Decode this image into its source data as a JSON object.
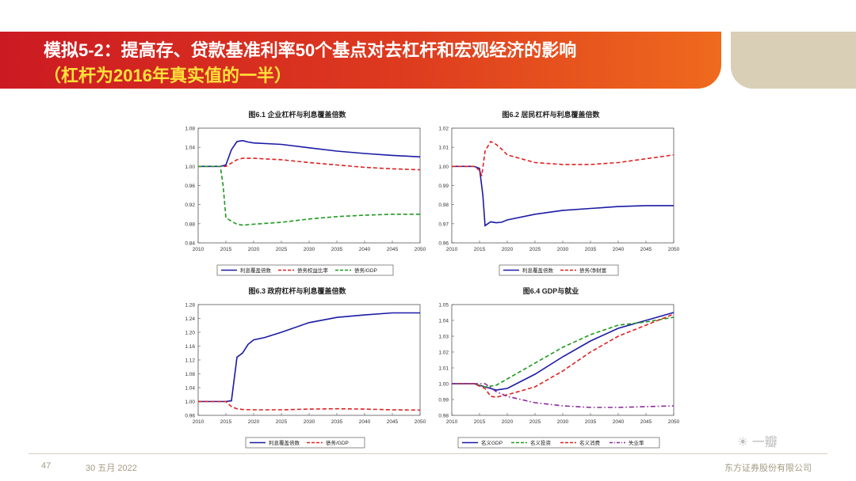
{
  "slide": {
    "title_line1": "模拟5-2：提高存、贷款基准利率50个基点对去杠杆和宏观经济的影响",
    "title_line2": "（杠杆为2016年真实值的一半）",
    "page_number": "47",
    "date": "30 五月 2022",
    "company": "东方证券股份有限公司",
    "watermark": "一瓣",
    "colors": {
      "title_bg": "#cc1a22",
      "title_text": "#ffffff",
      "subtitle_text": "#ffe23a",
      "corner": "#d9cfb6"
    }
  },
  "chart_data": [
    {
      "type": "line",
      "title": "图6.1  企业杠杆与利息覆盖倍数",
      "x_ticks": [
        "2010",
        "2015",
        "2020",
        "2025",
        "2030",
        "2035",
        "2040",
        "2045",
        "2050"
      ],
      "xlim": [
        2010,
        2050
      ],
      "y_ticks": [
        "0.84",
        "0.88",
        "0.92",
        "0.96",
        "1.00",
        "1.04",
        "1.08"
      ],
      "ylim": [
        0.84,
        1.08
      ],
      "series": [
        {
          "name": "利息覆盖倍数",
          "color": "#1a1aa6",
          "dash": "solid",
          "points": [
            [
              2010,
              1.0
            ],
            [
              2014,
              1.0
            ],
            [
              2015,
              1.003
            ],
            [
              2016,
              1.035
            ],
            [
              2017,
              1.052
            ],
            [
              2018,
              1.054
            ],
            [
              2019,
              1.051
            ],
            [
              2020,
              1.049
            ],
            [
              2025,
              1.046
            ],
            [
              2030,
              1.039
            ],
            [
              2035,
              1.032
            ],
            [
              2040,
              1.027
            ],
            [
              2045,
              1.023
            ],
            [
              2050,
              1.02
            ]
          ]
        },
        {
          "name": "债务权益比率",
          "color": "#e02020",
          "dash": "dashed",
          "points": [
            [
              2010,
              1.0
            ],
            [
              2014,
              1.0
            ],
            [
              2015,
              1.0
            ],
            [
              2016,
              1.007
            ],
            [
              2017,
              1.014
            ],
            [
              2018,
              1.017
            ],
            [
              2020,
              1.017
            ],
            [
              2025,
              1.014
            ],
            [
              2030,
              1.008
            ],
            [
              2035,
              1.003
            ],
            [
              2040,
              0.998
            ],
            [
              2045,
              0.995
            ],
            [
              2050,
              0.993
            ]
          ]
        },
        {
          "name": "债务/GDP",
          "color": "#1e9a1e",
          "dash": "dashed",
          "points": [
            [
              2010,
              1.0
            ],
            [
              2014,
              1.0
            ],
            [
              2014.5,
              0.96
            ],
            [
              2015,
              0.893
            ],
            [
              2016,
              0.885
            ],
            [
              2017,
              0.879
            ],
            [
              2018,
              0.877
            ],
            [
              2020,
              0.879
            ],
            [
              2025,
              0.883
            ],
            [
              2030,
              0.89
            ],
            [
              2035,
              0.895
            ],
            [
              2040,
              0.898
            ],
            [
              2045,
              0.9
            ],
            [
              2050,
              0.9
            ]
          ]
        }
      ]
    },
    {
      "type": "line",
      "title": "图6.2  居民杠杆与利息覆盖倍数",
      "x_ticks": [
        "2010",
        "2015",
        "2020",
        "2025",
        "2030",
        "2035",
        "2040",
        "2045",
        "2050"
      ],
      "xlim": [
        2010,
        2050
      ],
      "y_ticks": [
        "0.96",
        "0.97",
        "0.98",
        "0.99",
        "1.00",
        "1.01",
        "1.02"
      ],
      "ylim": [
        0.96,
        1.02
      ],
      "series": [
        {
          "name": "利息覆盖倍数",
          "color": "#1a1aa6",
          "dash": "solid",
          "points": [
            [
              2010,
              1.0
            ],
            [
              2014,
              1.0
            ],
            [
              2015,
              0.999
            ],
            [
              2015.6,
              0.985
            ],
            [
              2016,
              0.969
            ],
            [
              2016.5,
              0.97
            ],
            [
              2017,
              0.971
            ],
            [
              2018,
              0.9705
            ],
            [
              2019,
              0.9708
            ],
            [
              2020,
              0.972
            ],
            [
              2025,
              0.975
            ],
            [
              2030,
              0.977
            ],
            [
              2035,
              0.978
            ],
            [
              2040,
              0.979
            ],
            [
              2045,
              0.9795
            ],
            [
              2050,
              0.9795
            ]
          ]
        },
        {
          "name": "债务/净财富",
          "color": "#e02020",
          "dash": "dashed",
          "points": [
            [
              2010,
              1.0
            ],
            [
              2014,
              1.0
            ],
            [
              2015,
              0.998
            ],
            [
              2015.4,
              0.995
            ],
            [
              2016,
              1.008
            ],
            [
              2017,
              1.013
            ],
            [
              2018,
              1.0115
            ],
            [
              2019,
              1.009
            ],
            [
              2020,
              1.006
            ],
            [
              2025,
              1.002
            ],
            [
              2030,
              1.001
            ],
            [
              2035,
              1.001
            ],
            [
              2040,
              1.002
            ],
            [
              2045,
              1.004
            ],
            [
              2050,
              1.006
            ]
          ]
        }
      ]
    },
    {
      "type": "line",
      "title": "图6.3  政府杠杆与利息覆盖倍数",
      "x_ticks": [
        "2010",
        "2015",
        "2020",
        "2025",
        "2030",
        "2035",
        "2040",
        "2045",
        "2050"
      ],
      "xlim": [
        2010,
        2050
      ],
      "y_ticks": [
        "0.96",
        "1.00",
        "1.04",
        "1.08",
        "1.12",
        "1.16",
        "1.20",
        "1.24",
        "1.28"
      ],
      "ylim": [
        0.96,
        1.28
      ],
      "series": [
        {
          "name": "利息覆盖倍数",
          "color": "#1a1aa6",
          "dash": "solid",
          "points": [
            [
              2010,
              1.0
            ],
            [
              2015,
              1.0
            ],
            [
              2016,
              1.002
            ],
            [
              2017,
              1.128
            ],
            [
              2018,
              1.14
            ],
            [
              2019,
              1.165
            ],
            [
              2020,
              1.178
            ],
            [
              2022,
              1.185
            ],
            [
              2025,
              1.2
            ],
            [
              2030,
              1.228
            ],
            [
              2035,
              1.243
            ],
            [
              2040,
              1.25
            ],
            [
              2045,
              1.256
            ],
            [
              2050,
              1.256
            ]
          ]
        },
        {
          "name": "债务/GDP",
          "color": "#e02020",
          "dash": "dashed",
          "points": [
            [
              2010,
              1.0
            ],
            [
              2015,
              1.0
            ],
            [
              2016,
              0.985
            ],
            [
              2017,
              0.979
            ],
            [
              2018,
              0.977
            ],
            [
              2020,
              0.976
            ],
            [
              2025,
              0.976
            ],
            [
              2030,
              0.978
            ],
            [
              2035,
              0.979
            ],
            [
              2040,
              0.978
            ],
            [
              2045,
              0.976
            ],
            [
              2050,
              0.975
            ]
          ]
        }
      ]
    },
    {
      "type": "line",
      "title": "图6.4  GDP与就业",
      "x_ticks": [
        "2010",
        "2015",
        "2020",
        "2025",
        "2030",
        "2035",
        "2040",
        "2045",
        "2050"
      ],
      "xlim": [
        2010,
        2050
      ],
      "y_ticks": [
        "0.98",
        "0.99",
        "1.00",
        "1.01",
        "1.02",
        "1.03",
        "1.04",
        "1.05"
      ],
      "ylim": [
        0.98,
        1.05
      ],
      "series": [
        {
          "name": "名义GDP",
          "color": "#1a1aa6",
          "dash": "solid",
          "points": [
            [
              2010,
              1.0
            ],
            [
              2014,
              1.0
            ],
            [
              2016,
              0.998
            ],
            [
              2018,
              0.996
            ],
            [
              2020,
              0.997
            ],
            [
              2025,
              1.006
            ],
            [
              2030,
              1.017
            ],
            [
              2035,
              1.027
            ],
            [
              2040,
              1.035
            ],
            [
              2045,
              1.04
            ],
            [
              2050,
              1.045
            ]
          ]
        },
        {
          "name": "名义投资",
          "color": "#1e9a1e",
          "dash": "dashed",
          "points": [
            [
              2010,
              1.0
            ],
            [
              2014,
              1.0
            ],
            [
              2016,
              0.998
            ],
            [
              2018,
              0.999
            ],
            [
              2020,
              1.003
            ],
            [
              2025,
              1.013
            ],
            [
              2030,
              1.023
            ],
            [
              2035,
              1.031
            ],
            [
              2040,
              1.037
            ],
            [
              2045,
              1.039
            ],
            [
              2050,
              1.042
            ]
          ]
        },
        {
          "name": "名义消费",
          "color": "#e02020",
          "dash": "dashed",
          "points": [
            [
              2010,
              1.0
            ],
            [
              2014,
              1.0
            ],
            [
              2016,
              0.997
            ],
            [
              2017,
              0.992
            ],
            [
              2018,
              0.9915
            ],
            [
              2020,
              0.993
            ],
            [
              2025,
              0.998
            ],
            [
              2030,
              1.008
            ],
            [
              2035,
              1.02
            ],
            [
              2040,
              1.03
            ],
            [
              2045,
              1.037
            ],
            [
              2050,
              1.044
            ]
          ]
        },
        {
          "name": "失业率",
          "color": "#8a2a9a",
          "dash": "dashdot",
          "points": [
            [
              2010,
              1.0
            ],
            [
              2014,
              1.0
            ],
            [
              2016,
              1.0
            ],
            [
              2018,
              0.995
            ],
            [
              2020,
              0.992
            ],
            [
              2025,
              0.988
            ],
            [
              2030,
              0.986
            ],
            [
              2035,
              0.985
            ],
            [
              2040,
              0.985
            ],
            [
              2045,
              0.9855
            ],
            [
              2050,
              0.986
            ]
          ]
        }
      ]
    }
  ]
}
